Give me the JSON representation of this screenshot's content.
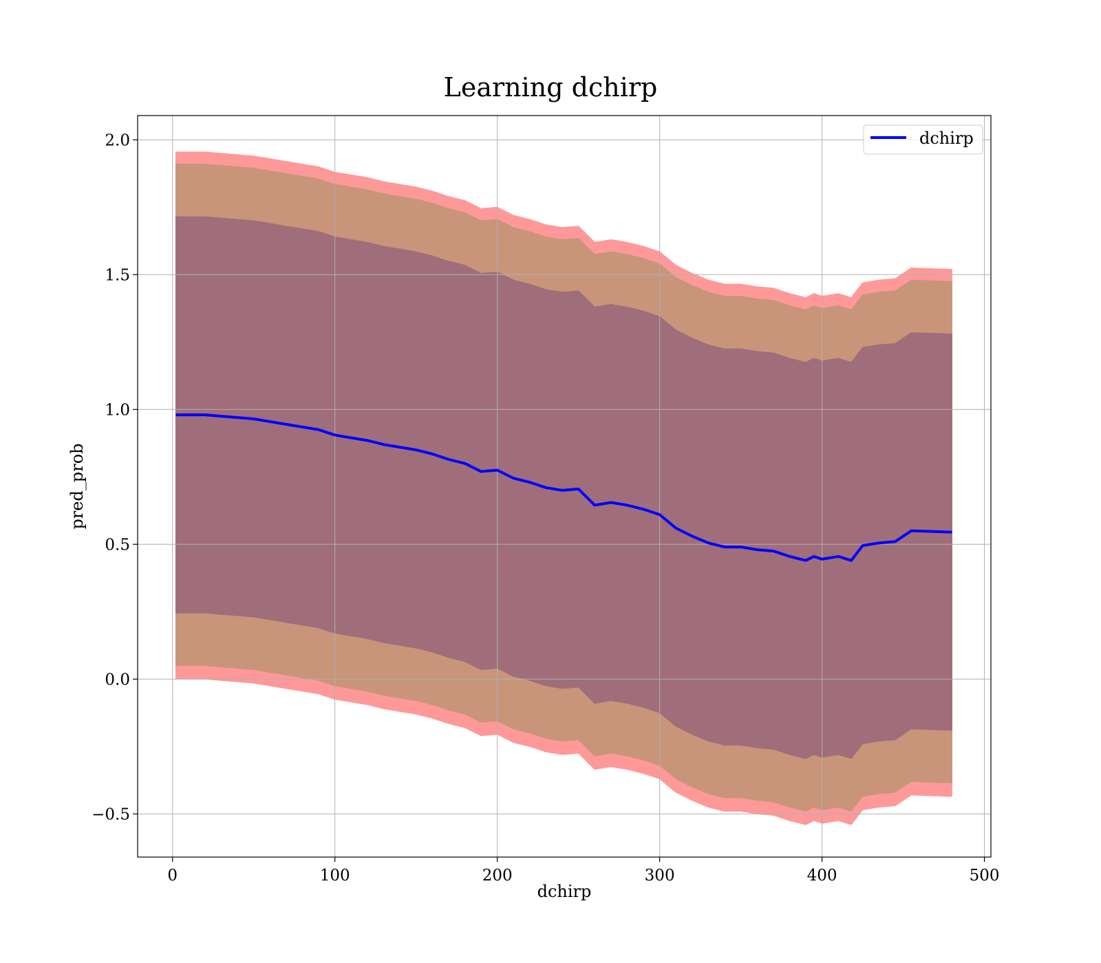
{
  "chart_data": {
    "type": "line",
    "title": "Learning dchirp",
    "xlabel": "dchirp",
    "ylabel": "pred_prob",
    "xlim": [
      -21.5,
      504
    ],
    "ylim": [
      -0.66,
      2.09
    ],
    "xticks": [
      0,
      100,
      200,
      300,
      400,
      500
    ],
    "xtick_labels": [
      "0",
      "100",
      "200",
      "300",
      "400",
      "500"
    ],
    "yticks": [
      -0.5,
      0.0,
      0.5,
      1.0,
      1.5,
      2.0
    ],
    "ytick_labels": [
      "−0.5",
      "0.0",
      "0.5",
      "1.0",
      "1.5",
      "2.0"
    ],
    "grid": true,
    "legend": {
      "position": "top-right",
      "entries": [
        "dchirp"
      ]
    },
    "colors": {
      "line": "#0000ff",
      "outer_band": "#ff9999",
      "middle_band": "#c8957a",
      "inner_band": "#a06e7a"
    },
    "series": [
      {
        "name": "dchirp",
        "x": [
          2,
          10,
          20,
          30,
          40,
          50,
          60,
          70,
          80,
          90,
          100,
          110,
          120,
          130,
          140,
          150,
          160,
          170,
          180,
          190,
          200,
          210,
          220,
          230,
          240,
          250,
          260,
          270,
          280,
          290,
          300,
          310,
          320,
          330,
          340,
          350,
          360,
          370,
          380,
          390,
          395,
          400,
          410,
          418,
          425,
          435,
          445,
          455,
          480
        ],
        "y": [
          0.98,
          0.98,
          0.98,
          0.975,
          0.97,
          0.965,
          0.955,
          0.945,
          0.935,
          0.925,
          0.905,
          0.895,
          0.885,
          0.87,
          0.86,
          0.85,
          0.835,
          0.815,
          0.8,
          0.77,
          0.775,
          0.745,
          0.73,
          0.71,
          0.7,
          0.705,
          0.645,
          0.655,
          0.645,
          0.63,
          0.61,
          0.56,
          0.53,
          0.505,
          0.49,
          0.49,
          0.48,
          0.475,
          0.455,
          0.44,
          0.455,
          0.445,
          0.455,
          0.44,
          0.495,
          0.505,
          0.51,
          0.55,
          0.545
        ]
      }
    ],
    "bands": [
      {
        "label": "outer",
        "lower_offset": -0.98,
        "upper_offset": 0.975
      },
      {
        "label": "middle",
        "lower_offset": -0.93,
        "upper_offset": 0.93
      },
      {
        "label": "inner",
        "lower_offset": -0.735,
        "upper_offset": 0.735
      }
    ]
  }
}
